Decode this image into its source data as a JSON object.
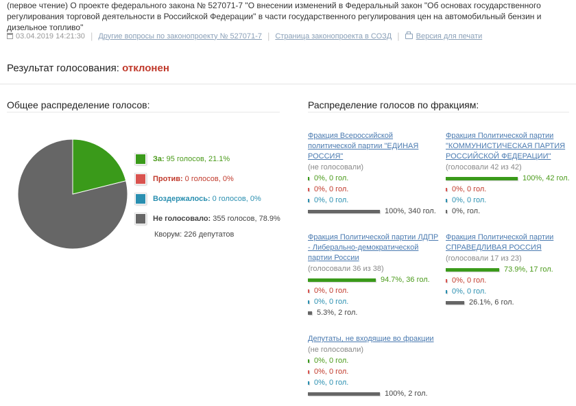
{
  "header": {
    "text": "(первое чтение) О проекте федерального закона № 527071-7 \"О внесении изменений в Федеральный закон \"Об основах государственного регулирования торговой деятельности в Российской Федерации\" в части государственного регулирования цен на автомобильный бензин и дизельное топливо\""
  },
  "meta": {
    "datetime": "03.04.2019 14:21:30",
    "link_other": "Другие вопросы по законопроекту № 527071-7",
    "link_sozd": "Страница законопроекта в СОЗД",
    "link_print": "Версия для печати",
    "sep": "|"
  },
  "result": {
    "label": "Результат голосования:",
    "value": "отклонен"
  },
  "overall": {
    "title": "Общее распределение голосов:",
    "legend": [
      {
        "label": "За:",
        "text": "95 голосов, 21.1%",
        "color": "#3a9a1a"
      },
      {
        "label": "Против:",
        "text": "0 голосов, 0%",
        "color": "#d9534f"
      },
      {
        "label": "Воздержалось:",
        "text": "0 голосов, 0%",
        "color": "#2a8fb0"
      },
      {
        "label": "Не голосовало:",
        "text": "355 голосов, 78.9%",
        "color": "#666666"
      }
    ],
    "quorum": "Кворум: 226 депутатов",
    "pie": {
      "for": 21.1,
      "against": 0,
      "abstain": 0,
      "absent": 78.9
    }
  },
  "factions": {
    "title": "Распределение голосов по фракциям:",
    "items": [
      {
        "name": "Фракция Всероссийской политической партии \"ЕДИНАЯ РОССИЯ\"",
        "sub": "(не голосовали)",
        "rows": [
          {
            "kind": "green",
            "text": "0%, 0 гол.",
            "fill": 0
          },
          {
            "kind": "red",
            "text": "0%, 0 гол.",
            "fill": 0
          },
          {
            "kind": "blue",
            "text": "0%, 0 гол.",
            "fill": 0
          },
          {
            "kind": "gray",
            "text": "100%, 340 гол.",
            "fill": 1.0
          }
        ]
      },
      {
        "name": "Фракция Политической партии \"КОММУНИСТИЧЕСКАЯ ПАРТИЯ РОССИЙСКОЙ ФЕДЕРАЦИИ\"",
        "sub": "(голосовали 42 из 42)",
        "rows": [
          {
            "kind": "green",
            "text": "100%, 42 гол.",
            "fill": 1.0
          },
          {
            "kind": "red",
            "text": "0%, 0 гол.",
            "fill": 0
          },
          {
            "kind": "blue",
            "text": "0%, 0 гол.",
            "fill": 0
          },
          {
            "kind": "gray",
            "text": "0%, гол.",
            "fill": 0
          }
        ]
      },
      {
        "name": "Фракция Политической партии ЛДПР - Либерально-демократической партии России",
        "sub": "(голосовали 36 из 38)",
        "rows": [
          {
            "kind": "green",
            "text": "94.7%, 36 гол.",
            "fill": 0.947
          },
          {
            "kind": "red",
            "text": "0%, 0 гол.",
            "fill": 0
          },
          {
            "kind": "blue",
            "text": "0%, 0 гол.",
            "fill": 0
          },
          {
            "kind": "gray",
            "text": "5.3%, 2 гол.",
            "fill": 0.053
          }
        ]
      },
      {
        "name": "Фракция Политической партии СПРАВЕДЛИВАЯ РОССИЯ",
        "sub": "(голосовали 17 из 23)",
        "rows": [
          {
            "kind": "green",
            "text": "73.9%, 17 гол.",
            "fill": 0.739
          },
          {
            "kind": "red",
            "text": "0%, 0 гол.",
            "fill": 0
          },
          {
            "kind": "blue",
            "text": "0%, 0 гол.",
            "fill": 0
          },
          {
            "kind": "gray",
            "text": "26.1%, 6 гол.",
            "fill": 0.261
          }
        ]
      },
      {
        "name": "Депутаты, не входящие во фракции",
        "sub": "(не голосовали)",
        "rows": [
          {
            "kind": "green",
            "text": "0%, 0 гол.",
            "fill": 0
          },
          {
            "kind": "red",
            "text": "0%, 0 гол.",
            "fill": 0
          },
          {
            "kind": "blue",
            "text": "0%, 0 гол.",
            "fill": 0
          },
          {
            "kind": "gray",
            "text": "100%, 2 гол.",
            "fill": 1.0
          }
        ]
      }
    ]
  },
  "colors": {
    "green": "#3a9a1a",
    "red": "#d9534f",
    "blue": "#2a8fb0",
    "gray": "#666666"
  }
}
